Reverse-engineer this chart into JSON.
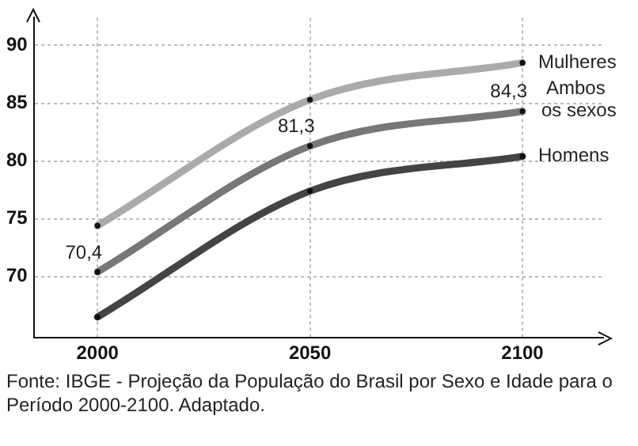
{
  "chart_data": {
    "type": "line",
    "x": [
      2000,
      2050,
      2100
    ],
    "xlim": [
      1985,
      2119
    ],
    "xticks": [
      2000,
      2050,
      2100
    ],
    "ylim": [
      64.7,
      92.4
    ],
    "yticks": [
      70,
      75,
      80,
      85,
      90
    ],
    "grid": true,
    "legend": false,
    "marker": "circle",
    "series": [
      {
        "name": "Mulheres",
        "color": "#aaaaaa",
        "values": [
          74.4,
          85.3,
          88.5
        ]
      },
      {
        "name": "Ambos os sexos",
        "color": "#777777",
        "values": [
          70.4,
          81.3,
          84.3
        ],
        "value_labels": [
          "70,4",
          "81,3",
          "84,3"
        ]
      },
      {
        "name": "Homens",
        "color": "#444444",
        "values": [
          66.5,
          77.4,
          80.4
        ]
      }
    ],
    "annotations": [
      "Fonte: IBGE - Projeção da População do Brasil por Sexo e Idade para o Período 2000-2100. Adaptado."
    ]
  }
}
